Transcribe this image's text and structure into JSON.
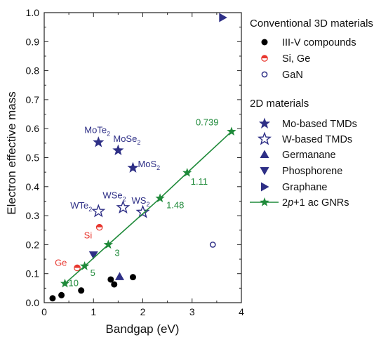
{
  "chart_data": {
    "type": "scatter",
    "xlabel": "Bandgap (eV)",
    "ylabel": "Electron effective mass",
    "xlim": [
      0,
      4
    ],
    "ylim": [
      0,
      1.0
    ],
    "xticks": [
      "0",
      "1",
      "2",
      "3",
      "4"
    ],
    "yticks": [
      "0.0",
      "0.1",
      "0.2",
      "0.3",
      "0.4",
      "0.5",
      "0.6",
      "0.7",
      "0.8",
      "0.9",
      "1.0"
    ],
    "grid": false,
    "legend_position": "right",
    "legend": {
      "group1_title": "Conventional 3D materials",
      "group2_title": "2D materials",
      "entries": [
        {
          "key": "iiiv",
          "label": "III-V compounds",
          "marker": "circle-filled",
          "color": "#000000"
        },
        {
          "key": "sige",
          "label": "Si, Ge",
          "marker": "circle-half",
          "color": "#e8372f"
        },
        {
          "key": "gan",
          "label": "GaN",
          "marker": "circle-open",
          "color": "#2e2f86"
        },
        {
          "key": "mo",
          "label": "Mo-based TMDs",
          "marker": "star-filled",
          "color": "#2e2f86"
        },
        {
          "key": "w",
          "label": "W-based TMDs",
          "marker": "star-open",
          "color": "#2e2f86"
        },
        {
          "key": "germanane",
          "label": "Germanane",
          "marker": "triangle-up",
          "color": "#2e2f86"
        },
        {
          "key": "phosphorene",
          "label": "Phosphorene",
          "marker": "triangle-down",
          "color": "#2e2f86"
        },
        {
          "key": "graphane",
          "label": "Graphane",
          "marker": "triangle-right",
          "color": "#2e2f86"
        },
        {
          "key": "gnr",
          "label_pre": "2",
          "label_italic": "p",
          "label_post": "+1 ac GNRs",
          "marker": "star-line",
          "color": "#1f8a3a"
        }
      ]
    },
    "series": [
      {
        "key": "iiiv",
        "points": [
          [
            0.17,
            0.015
          ],
          [
            0.35,
            0.026
          ],
          [
            0.75,
            0.042
          ],
          [
            1.35,
            0.08
          ],
          [
            1.42,
            0.063
          ],
          [
            1.8,
            0.088
          ]
        ]
      },
      {
        "key": "sige",
        "points": [
          [
            0.67,
            0.12
          ],
          [
            1.12,
            0.26
          ]
        ]
      },
      {
        "key": "gan",
        "points": [
          [
            3.42,
            0.2
          ]
        ]
      },
      {
        "key": "mo",
        "points": [
          [
            1.1,
            0.553
          ],
          [
            1.5,
            0.525
          ],
          [
            1.8,
            0.465
          ]
        ]
      },
      {
        "key": "w",
        "points": [
          [
            1.1,
            0.315
          ],
          [
            1.6,
            0.328
          ],
          [
            2.0,
            0.312
          ]
        ]
      },
      {
        "key": "germanane",
        "points": [
          [
            1.53,
            0.09
          ]
        ]
      },
      {
        "key": "phosphorene",
        "points": [
          [
            1.0,
            0.165
          ]
        ]
      },
      {
        "key": "graphane",
        "points": [
          [
            3.62,
            0.983
          ]
        ]
      },
      {
        "key": "gnr",
        "points": [
          [
            0.42,
            0.066
          ],
          [
            0.82,
            0.126
          ],
          [
            1.3,
            0.2
          ],
          [
            2.35,
            0.36
          ],
          [
            2.9,
            0.448
          ],
          [
            3.8,
            0.59
          ]
        ]
      }
    ],
    "annotations": [
      {
        "sub": "MoTe",
        "subscript": "2",
        "x": 1.1,
        "y": 0.553,
        "color": "#2e2f86"
      },
      {
        "sub": "MoSe",
        "subscript": "2",
        "x": 1.5,
        "y": 0.525,
        "color": "#2e2f86"
      },
      {
        "sub": "MoS",
        "subscript": "2",
        "x": 1.8,
        "y": 0.465,
        "color": "#2e2f86"
      },
      {
        "sub": "WTe",
        "subscript": "2",
        "x": 1.1,
        "y": 0.315,
        "color": "#2e2f86"
      },
      {
        "sub": "WSe",
        "subscript": "2",
        "x": 1.6,
        "y": 0.328,
        "color": "#2e2f86"
      },
      {
        "sub": "WS",
        "subscript": "2",
        "x": 2.0,
        "y": 0.312,
        "color": "#2e2f86"
      },
      {
        "sub": "Si",
        "subscript": "",
        "x": 1.12,
        "y": 0.26,
        "color": "#e8372f"
      },
      {
        "sub": "Ge",
        "subscript": "",
        "x": 0.67,
        "y": 0.12,
        "color": "#e8372f"
      },
      {
        "sub": "0.739",
        "subscript": "",
        "x": 3.8,
        "y": 0.59,
        "color": "#1f8a3a"
      },
      {
        "sub": "1.11",
        "subscript": "",
        "x": 2.9,
        "y": 0.448,
        "color": "#1f8a3a"
      },
      {
        "sub": "1.48",
        "subscript": "",
        "x": 2.35,
        "y": 0.36,
        "color": "#1f8a3a"
      },
      {
        "sub": "3",
        "subscript": "",
        "x": 1.3,
        "y": 0.2,
        "color": "#1f8a3a"
      },
      {
        "sub": "5",
        "subscript": "",
        "x": 0.82,
        "y": 0.126,
        "color": "#1f8a3a"
      },
      {
        "sub": "10",
        "subscript": "",
        "x": 0.42,
        "y": 0.066,
        "color": "#1f8a3a"
      }
    ]
  }
}
